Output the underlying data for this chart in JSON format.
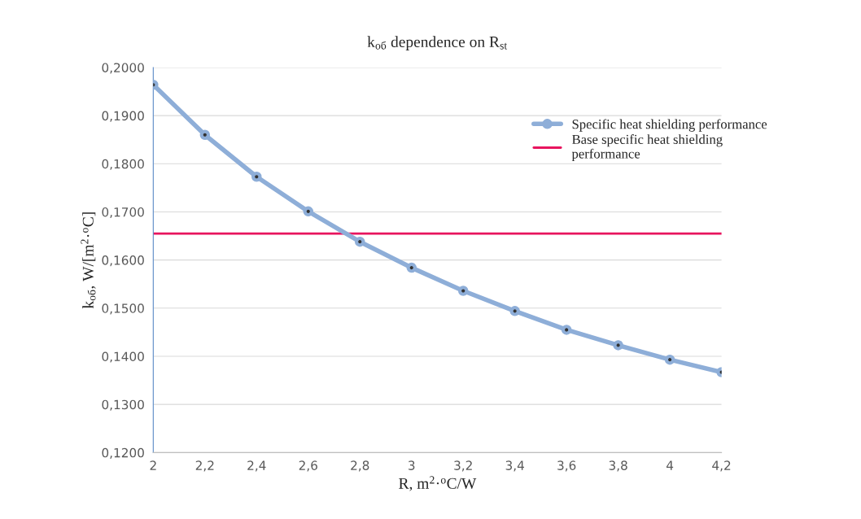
{
  "chart_data": {
    "type": "line",
    "title": "k$_{об}$ dependence on R$_{st}$",
    "xlabel": "R, m$^{2}$·$^{o}$C/W",
    "ylabel": "k$_{об}$, W/[m$^{2}$·$^{o}$C]",
    "categories": [
      "2",
      "2,2",
      "2,4",
      "2,6",
      "2,8",
      "3",
      "3,2",
      "3,4",
      "3,6",
      "3,8",
      "4",
      "4,2"
    ],
    "series": [
      {
        "name": "Specific heat shielding performance",
        "color": "#8eaed8",
        "values": [
          0.1964,
          0.186,
          0.1773,
          0.1701,
          0.1638,
          0.1584,
          0.1536,
          0.1494,
          0.1455,
          0.1423,
          0.1393,
          0.1367
        ]
      }
    ],
    "ref_lines": [
      {
        "axis": "y",
        "value": 0.1655,
        "label": "Base specific heat shielding\nperformance",
        "color": "#e8155e"
      }
    ],
    "ylim": [
      0.12,
      0.2
    ],
    "yticks": [
      {
        "value": 0.12,
        "label": "0,1200"
      },
      {
        "value": 0.13,
        "label": "0,1300"
      },
      {
        "value": 0.14,
        "label": "0,1400"
      },
      {
        "value": 0.15,
        "label": "0,1500"
      },
      {
        "value": 0.16,
        "label": "0,1600"
      },
      {
        "value": 0.17,
        "label": "0,1700"
      },
      {
        "value": 0.18,
        "label": "0,1800"
      },
      {
        "value": 0.19,
        "label": "0,1900"
      },
      {
        "value": 0.2,
        "label": "0,2000"
      }
    ],
    "grid": "y",
    "legend": "top right",
    "marker": "circle",
    "line_style": "solid"
  }
}
